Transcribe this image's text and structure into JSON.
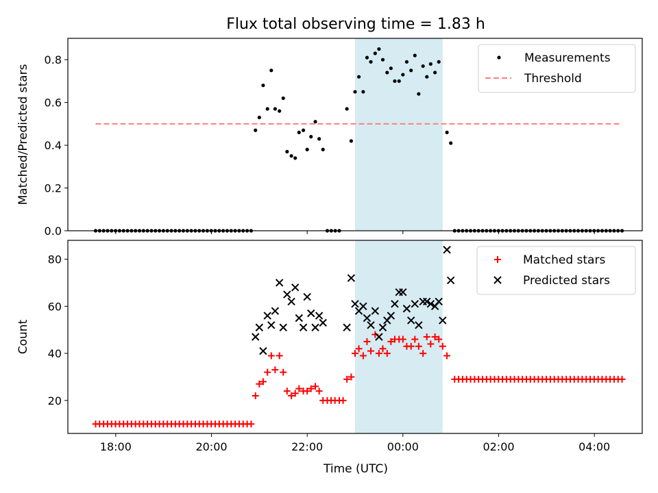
{
  "figure": {
    "title": "Flux total observing time = 1.83 h",
    "xlabel": "Time (UTC)",
    "xticks": [
      {
        "h": -6,
        "label": "18:00"
      },
      {
        "h": -4,
        "label": "20:00"
      },
      {
        "h": -2,
        "label": "22:00"
      },
      {
        "h": 0,
        "label": "00:00"
      },
      {
        "h": 2,
        "label": "02:00"
      },
      {
        "h": 4,
        "label": "04:00"
      }
    ],
    "xlim": [
      -7.0,
      5.0
    ],
    "x_axis_note": "hours relative to 00:00 UTC",
    "shaded_interval": {
      "start": -1.0,
      "end": 0.83,
      "color": "#add8e6",
      "alpha": 0.5
    }
  },
  "chart_data": [
    {
      "type": "scatter",
      "panel": "top",
      "ylabel": "Matched/Predicted stars",
      "ylim": [
        0.0,
        0.9
      ],
      "yticks": [
        0.0,
        0.2,
        0.4,
        0.6,
        0.8
      ],
      "ytick_labels": [
        "0.0",
        "0.2",
        "0.4",
        "0.6",
        "0.8"
      ],
      "legend_position": "top-right",
      "series": [
        {
          "name": "Measurements",
          "kind": "points",
          "color": "#000000",
          "zero_segments": [
            {
              "from": -6.42,
              "to": -3.17,
              "step": 0.0833
            },
            {
              "from": -1.58,
              "to": -1.25,
              "step": 0.0833
            },
            {
              "from": 1.08,
              "to": 4.58,
              "step": 0.0833
            }
          ],
          "points": [
            [
              -3.08,
              0.47
            ],
            [
              -3.0,
              0.53
            ],
            [
              -2.92,
              0.68
            ],
            [
              -2.83,
              0.57
            ],
            [
              -2.75,
              0.75
            ],
            [
              -2.67,
              0.57
            ],
            [
              -2.58,
              0.56
            ],
            [
              -2.5,
              0.62
            ],
            [
              -2.42,
              0.37
            ],
            [
              -2.33,
              0.35
            ],
            [
              -2.25,
              0.34
            ],
            [
              -2.17,
              0.46
            ],
            [
              -2.08,
              0.47
            ],
            [
              -2.0,
              0.38
            ],
            [
              -1.92,
              0.44
            ],
            [
              -1.83,
              0.51
            ],
            [
              -1.75,
              0.43
            ],
            [
              -1.67,
              0.38
            ],
            [
              -1.17,
              0.57
            ],
            [
              -1.08,
              0.42
            ],
            [
              -1.0,
              0.65
            ],
            [
              -0.92,
              0.72
            ],
            [
              -0.83,
              0.65
            ],
            [
              -0.75,
              0.81
            ],
            [
              -0.67,
              0.79
            ],
            [
              -0.58,
              0.83
            ],
            [
              -0.5,
              0.85
            ],
            [
              -0.42,
              0.8
            ],
            [
              -0.33,
              0.74
            ],
            [
              -0.25,
              0.76
            ],
            [
              -0.17,
              0.7
            ],
            [
              -0.08,
              0.7
            ],
            [
              0.0,
              0.73
            ],
            [
              0.08,
              0.79
            ],
            [
              0.17,
              0.75
            ],
            [
              0.25,
              0.82
            ],
            [
              0.33,
              0.64
            ],
            [
              0.42,
              0.77
            ],
            [
              0.5,
              0.72
            ],
            [
              0.58,
              0.78
            ],
            [
              0.67,
              0.74
            ],
            [
              0.75,
              0.79
            ],
            [
              0.92,
              0.46
            ],
            [
              1.0,
              0.41
            ]
          ]
        },
        {
          "name": "Threshold",
          "kind": "dashed-line",
          "color": "#ff7f7f",
          "y": 0.5,
          "x_range": [
            -6.42,
            4.58
          ]
        }
      ]
    },
    {
      "type": "scatter",
      "panel": "bottom",
      "ylabel": "Count",
      "ylim": [
        6,
        88
      ],
      "yticks": [
        20,
        40,
        60,
        80
      ],
      "ytick_labels": [
        "20",
        "40",
        "60",
        "80"
      ],
      "legend_position": "top-right",
      "series": [
        {
          "name": "Matched stars",
          "marker": "plus",
          "color": "#ff0000",
          "flat_segments": [
            {
              "from": -6.42,
              "to": -3.17,
              "step": 0.0833,
              "y": 10
            },
            {
              "from": 1.08,
              "to": 4.58,
              "step": 0.0833,
              "y": 29
            }
          ],
          "points": [
            [
              -3.08,
              22
            ],
            [
              -3.0,
              27
            ],
            [
              -2.92,
              28
            ],
            [
              -2.83,
              32
            ],
            [
              -2.75,
              39
            ],
            [
              -2.67,
              33
            ],
            [
              -2.58,
              39
            ],
            [
              -2.5,
              32
            ],
            [
              -2.42,
              24
            ],
            [
              -2.33,
              22
            ],
            [
              -2.25,
              23
            ],
            [
              -2.17,
              25
            ],
            [
              -2.08,
              24
            ],
            [
              -2.0,
              24
            ],
            [
              -1.92,
              25
            ],
            [
              -1.83,
              26
            ],
            [
              -1.75,
              24
            ],
            [
              -1.67,
              20
            ],
            [
              -1.58,
              20
            ],
            [
              -1.5,
              20
            ],
            [
              -1.42,
              20
            ],
            [
              -1.33,
              20
            ],
            [
              -1.25,
              20
            ],
            [
              -1.17,
              29
            ],
            [
              -1.08,
              30
            ],
            [
              -1.0,
              40
            ],
            [
              -0.92,
              42
            ],
            [
              -0.83,
              39
            ],
            [
              -0.75,
              45
            ],
            [
              -0.67,
              41
            ],
            [
              -0.58,
              48
            ],
            [
              -0.5,
              40
            ],
            [
              -0.42,
              42
            ],
            [
              -0.33,
              40
            ],
            [
              -0.25,
              45
            ],
            [
              -0.17,
              46
            ],
            [
              -0.08,
              46
            ],
            [
              0.0,
              46
            ],
            [
              0.08,
              43
            ],
            [
              0.17,
              43
            ],
            [
              0.25,
              46
            ],
            [
              0.33,
              43
            ],
            [
              0.42,
              40
            ],
            [
              0.5,
              47
            ],
            [
              0.58,
              44
            ],
            [
              0.67,
              47
            ],
            [
              0.75,
              46
            ],
            [
              0.83,
              43
            ],
            [
              0.92,
              39
            ]
          ]
        },
        {
          "name": "Predicted stars",
          "marker": "x",
          "color": "#000000",
          "points": [
            [
              -3.08,
              47
            ],
            [
              -3.0,
              51
            ],
            [
              -2.92,
              41
            ],
            [
              -2.83,
              56
            ],
            [
              -2.75,
              52
            ],
            [
              -2.67,
              58
            ],
            [
              -2.58,
              70
            ],
            [
              -2.5,
              51
            ],
            [
              -2.42,
              65
            ],
            [
              -2.33,
              62
            ],
            [
              -2.25,
              68
            ],
            [
              -2.17,
              55
            ],
            [
              -2.08,
              51
            ],
            [
              -2.0,
              64
            ],
            [
              -1.92,
              57
            ],
            [
              -1.83,
              51
            ],
            [
              -1.75,
              56
            ],
            [
              -1.67,
              53
            ],
            [
              -1.17,
              51
            ],
            [
              -1.08,
              72
            ],
            [
              -1.0,
              61
            ],
            [
              -0.92,
              58
            ],
            [
              -0.83,
              60
            ],
            [
              -0.75,
              55
            ],
            [
              -0.67,
              52
            ],
            [
              -0.58,
              58
            ],
            [
              -0.5,
              47
            ],
            [
              -0.42,
              51
            ],
            [
              -0.33,
              54
            ],
            [
              -0.25,
              56
            ],
            [
              -0.17,
              61
            ],
            [
              -0.08,
              66
            ],
            [
              0.0,
              66
            ],
            [
              0.08,
              59
            ],
            [
              0.17,
              54
            ],
            [
              0.25,
              61
            ],
            [
              0.33,
              52
            ],
            [
              0.42,
              62
            ],
            [
              0.5,
              62
            ],
            [
              0.58,
              61
            ],
            [
              0.67,
              60
            ],
            [
              0.75,
              62
            ],
            [
              0.83,
              54
            ],
            [
              0.92,
              84
            ],
            [
              1.0,
              71
            ]
          ]
        }
      ]
    }
  ]
}
